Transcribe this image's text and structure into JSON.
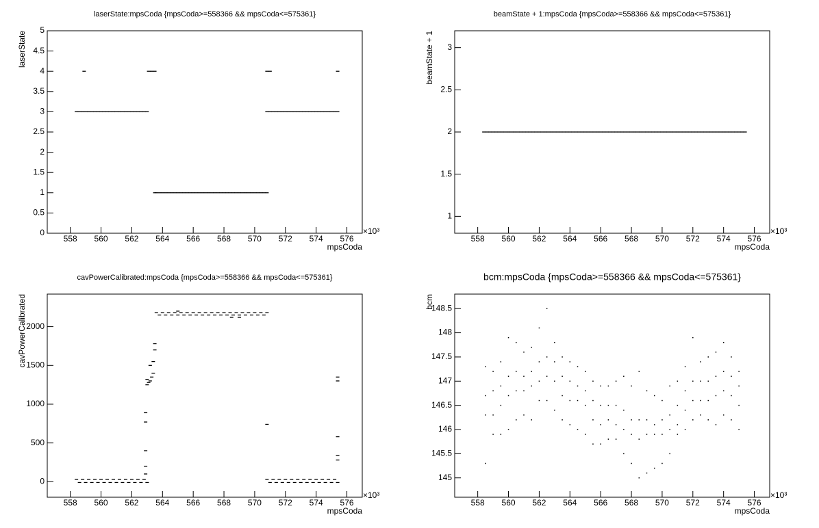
{
  "chart_data": [
    {
      "type": "scatter",
      "title": "laserState:mpsCoda {mpsCoda>=558366 && mpsCoda<=575361}",
      "x_label": "mpsCoda",
      "y_label": "laserState",
      "x_multiplier": "×10³",
      "color": "#000000",
      "xlim": [
        556.5,
        577.0
      ],
      "ylim": [
        0,
        5
      ],
      "xticks": [
        558,
        560,
        562,
        564,
        566,
        568,
        570,
        572,
        574,
        576
      ],
      "yticks": [
        0,
        0.5,
        1,
        1.5,
        2,
        2.5,
        3,
        3.5,
        4,
        4.5,
        5
      ],
      "x": [
        558.4,
        558.6,
        558.8,
        559.0,
        559.2,
        559.4,
        559.6,
        559.8,
        560.0,
        560.2,
        560.4,
        560.6,
        560.8,
        561.0,
        561.2,
        561.4,
        561.6,
        561.8,
        562.0,
        562.2,
        562.4,
        562.6,
        562.8,
        563.0,
        563.1,
        563.3,
        563.5,
        563.6,
        563.8,
        564.0,
        564.2,
        564.4,
        564.6,
        564.8,
        565.0,
        565.2,
        565.4,
        565.6,
        565.8,
        566.0,
        566.2,
        566.4,
        566.6,
        566.8,
        567.0,
        567.2,
        567.4,
        567.6,
        567.8,
        568.0,
        568.2,
        568.4,
        568.6,
        568.8,
        569.0,
        569.2,
        569.4,
        569.6,
        569.8,
        570.0,
        570.2,
        570.4,
        570.6,
        570.8,
        570.8,
        571.0,
        571.2,
        571.4,
        571.6,
        571.8,
        572.0,
        572.2,
        572.4,
        572.6,
        572.8,
        573.0,
        573.2,
        573.4,
        573.6,
        573.8,
        574.0,
        574.2,
        574.4,
        574.6,
        574.8,
        575.0,
        575.2,
        575.4,
        558.9,
        570.8,
        571.0,
        575.4,
        563.5
      ],
      "y": [
        3,
        3,
        3,
        3,
        3,
        3,
        3,
        3,
        3,
        3,
        3,
        3,
        3,
        3,
        3,
        3,
        3,
        3,
        3,
        3,
        3,
        3,
        3,
        3,
        4,
        4,
        4,
        1,
        1,
        1,
        1,
        1,
        1,
        1,
        1,
        1,
        1,
        1,
        1,
        1,
        1,
        1,
        1,
        1,
        1,
        1,
        1,
        1,
        1,
        1,
        1,
        1,
        1,
        1,
        1,
        1,
        1,
        1,
        1,
        1,
        1,
        1,
        1,
        1,
        3,
        3,
        3,
        3,
        3,
        3,
        3,
        3,
        3,
        3,
        3,
        3,
        3,
        3,
        3,
        3,
        3,
        3,
        3,
        3,
        3,
        3,
        3,
        3,
        4,
        4,
        4,
        4,
        1
      ]
    },
    {
      "type": "scatter",
      "title": "beamState + 1:mpsCoda {mpsCoda>=558366 && mpsCoda<=575361}",
      "x_label": "mpsCoda",
      "y_label": "beamState + 1",
      "x_multiplier": "×10³",
      "color": "#000000",
      "xlim": [
        556.5,
        577.0
      ],
      "ylim": [
        0.8,
        3.2
      ],
      "xticks": [
        558,
        560,
        562,
        564,
        566,
        568,
        570,
        572,
        574,
        576
      ],
      "yticks": [
        1,
        1.5,
        2,
        2.5,
        3
      ],
      "x": [
        558.4,
        558.6,
        558.8,
        559.0,
        559.2,
        559.4,
        559.6,
        559.8,
        560.0,
        560.2,
        560.4,
        560.6,
        560.8,
        561.0,
        561.2,
        561.4,
        561.6,
        561.8,
        562.0,
        562.2,
        562.4,
        562.6,
        562.8,
        563.0,
        563.2,
        563.4,
        563.6,
        563.8,
        564.0,
        564.2,
        564.4,
        564.6,
        564.8,
        565.0,
        565.2,
        565.4,
        565.6,
        565.8,
        566.0,
        566.2,
        566.4,
        566.6,
        566.8,
        567.0,
        567.2,
        567.4,
        567.6,
        567.8,
        568.0,
        568.2,
        568.4,
        568.6,
        568.8,
        569.0,
        569.2,
        569.4,
        569.6,
        569.8,
        570.0,
        570.2,
        570.4,
        570.6,
        570.8,
        571.0,
        571.2,
        571.4,
        571.6,
        571.8,
        572.0,
        572.2,
        572.4,
        572.6,
        572.8,
        573.0,
        573.2,
        573.4,
        573.6,
        573.8,
        574.0,
        574.2,
        574.4,
        574.6,
        574.8,
        575.0,
        575.2,
        575.4
      ],
      "y": [
        2,
        2,
        2,
        2,
        2,
        2,
        2,
        2,
        2,
        2,
        2,
        2,
        2,
        2,
        2,
        2,
        2,
        2,
        2,
        2,
        2,
        2,
        2,
        2,
        2,
        2,
        2,
        2,
        2,
        2,
        2,
        2,
        2,
        2,
        2,
        2,
        2,
        2,
        2,
        2,
        2,
        2,
        2,
        2,
        2,
        2,
        2,
        2,
        2,
        2,
        2,
        2,
        2,
        2,
        2,
        2,
        2,
        2,
        2,
        2,
        2,
        2,
        2,
        2,
        2,
        2,
        2,
        2,
        2,
        2,
        2,
        2,
        2,
        2,
        2,
        2,
        2,
        2,
        2,
        2,
        2,
        2,
        2,
        2,
        2,
        2
      ]
    },
    {
      "type": "scatter",
      "title": "cavPowerCalibrated:mpsCoda {mpsCoda>=558366 && mpsCoda<=575361}",
      "x_label": "mpsCoda",
      "y_label": "cavPowerCalibrated",
      "x_multiplier": "×10³",
      "color": "#000000",
      "xlim": [
        556.5,
        577.0
      ],
      "ylim": [
        -200,
        2420
      ],
      "xticks": [
        558,
        560,
        562,
        564,
        566,
        568,
        570,
        572,
        574,
        576
      ],
      "yticks": [
        0,
        500,
        1000,
        1500,
        2000
      ],
      "x": [
        558.4,
        558.8,
        559.2,
        559.6,
        560.0,
        560.4,
        560.8,
        561.2,
        561.6,
        562.0,
        562.4,
        562.8,
        558.6,
        559.0,
        559.4,
        559.8,
        560.2,
        560.6,
        561.0,
        561.4,
        561.8,
        562.2,
        562.6,
        563.0,
        563.6,
        564.0,
        564.4,
        564.8,
        565.2,
        565.6,
        566.0,
        566.4,
        566.8,
        567.2,
        567.6,
        568.0,
        568.4,
        568.8,
        569.2,
        569.6,
        570.0,
        570.4,
        570.8,
        563.8,
        564.2,
        564.6,
        565.0,
        565.4,
        565.8,
        566.2,
        566.6,
        567.0,
        567.4,
        567.8,
        568.2,
        568.6,
        569.0,
        569.4,
        569.8,
        570.2,
        570.6,
        570.8,
        571.2,
        571.6,
        572.0,
        572.4,
        572.8,
        573.2,
        573.6,
        574.0,
        574.4,
        574.8,
        575.2,
        571.0,
        571.4,
        571.8,
        572.2,
        572.6,
        573.0,
        573.4,
        573.8,
        574.2,
        574.6,
        575.0,
        575.4,
        563.0,
        563.1,
        563.2,
        563.3,
        563.4,
        563.4,
        563.5,
        563.5,
        563.2,
        563.0,
        562.9,
        562.9,
        562.9,
        562.9,
        562.9,
        570.8,
        575.4,
        575.4,
        575.4,
        575.4,
        575.4,
        568.5,
        569.0,
        565.0
      ],
      "y": [
        30,
        30,
        30,
        30,
        30,
        30,
        30,
        30,
        30,
        30,
        30,
        30,
        -10,
        -10,
        -10,
        -10,
        -10,
        -10,
        -10,
        -10,
        -10,
        -10,
        -10,
        -10,
        2180,
        2180,
        2180,
        2180,
        2180,
        2180,
        2180,
        2180,
        2180,
        2180,
        2180,
        2180,
        2180,
        2180,
        2180,
        2180,
        2180,
        2180,
        2180,
        2150,
        2150,
        2150,
        2150,
        2150,
        2150,
        2150,
        2150,
        2150,
        2150,
        2150,
        2150,
        2150,
        2150,
        2150,
        2150,
        2150,
        2150,
        30,
        30,
        30,
        30,
        30,
        30,
        30,
        30,
        30,
        30,
        30,
        30,
        -10,
        -10,
        -10,
        -10,
        -10,
        -10,
        -10,
        -10,
        -10,
        -10,
        -10,
        -10,
        1250,
        1280,
        1300,
        1350,
        1400,
        1550,
        1700,
        1780,
        1500,
        1320,
        100,
        200,
        400,
        890,
        770,
        740,
        1350,
        1300,
        580,
        340,
        280,
        2120,
        2120,
        2200
      ]
    },
    {
      "type": "scatter",
      "title": "bcm:mpsCoda {mpsCoda>=558366 && mpsCoda<=575361}",
      "x_label": "mpsCoda",
      "y_label": "bcm",
      "x_multiplier": "×10³",
      "color": "#000000",
      "xlim": [
        556.5,
        577.0
      ],
      "ylim": [
        144.6,
        148.8
      ],
      "xticks": [
        558,
        560,
        562,
        564,
        566,
        568,
        570,
        572,
        574,
        576
      ],
      "yticks": [
        145,
        145.5,
        146,
        146.5,
        147,
        147.5,
        148,
        148.5
      ],
      "x": [
        558.5,
        558.5,
        558.5,
        558.5,
        559.0,
        559.0,
        559.0,
        559.0,
        559.5,
        559.5,
        559.5,
        559.5,
        560.0,
        560.0,
        560.0,
        560.0,
        560.5,
        560.5,
        560.5,
        560.5,
        561.0,
        561.0,
        561.0,
        561.0,
        561.5,
        561.5,
        561.5,
        561.5,
        562.0,
        562.0,
        562.0,
        562.0,
        562.5,
        562.5,
        562.5,
        562.5,
        563.0,
        563.0,
        563.0,
        563.0,
        563.5,
        563.5,
        563.5,
        563.5,
        564.0,
        564.0,
        564.0,
        564.0,
        564.5,
        564.5,
        564.5,
        564.5,
        565.0,
        565.0,
        565.0,
        565.0,
        565.5,
        565.5,
        565.5,
        565.5,
        566.0,
        566.0,
        566.0,
        566.0,
        566.5,
        566.5,
        566.5,
        566.5,
        567.0,
        567.0,
        567.0,
        567.0,
        567.5,
        567.5,
        567.5,
        567.5,
        568.0,
        568.0,
        568.0,
        568.0,
        568.5,
        568.5,
        568.5,
        568.5,
        569.0,
        569.0,
        569.0,
        569.0,
        569.5,
        569.5,
        569.5,
        569.5,
        570.0,
        570.0,
        570.0,
        570.0,
        570.5,
        570.5,
        570.5,
        570.5,
        571.0,
        571.0,
        571.0,
        571.0,
        571.5,
        571.5,
        571.5,
        571.5,
        572.0,
        572.0,
        572.0,
        572.0,
        572.5,
        572.5,
        572.5,
        572.5,
        573.0,
        573.0,
        573.0,
        573.0,
        573.5,
        573.5,
        573.5,
        573.5,
        574.0,
        574.0,
        574.0,
        574.0,
        574.5,
        574.5,
        574.5,
        574.5,
        575.0,
        575.0,
        575.0,
        575.0
      ],
      "y": [
        145.3,
        146.3,
        146.7,
        147.3,
        145.9,
        146.3,
        146.8,
        147.2,
        145.9,
        146.5,
        146.9,
        147.4,
        146.0,
        146.7,
        147.1,
        147.9,
        146.2,
        146.8,
        147.2,
        147.8,
        146.3,
        146.8,
        147.1,
        147.6,
        146.2,
        146.9,
        147.2,
        147.7,
        146.6,
        147.0,
        147.4,
        148.1,
        146.6,
        147.1,
        147.5,
        148.5,
        146.4,
        147.0,
        147.4,
        147.8,
        146.2,
        146.7,
        147.1,
        147.5,
        146.1,
        146.6,
        147.0,
        147.4,
        146.0,
        146.6,
        146.9,
        147.3,
        145.9,
        146.5,
        146.8,
        147.2,
        145.7,
        146.2,
        146.6,
        147.0,
        145.7,
        146.1,
        146.5,
        146.9,
        145.8,
        146.2,
        146.5,
        146.9,
        145.8,
        146.1,
        146.5,
        147.0,
        145.5,
        146.0,
        146.4,
        147.1,
        145.3,
        145.9,
        146.2,
        146.9,
        145.0,
        145.8,
        146.2,
        147.2,
        145.1,
        145.9,
        146.2,
        146.8,
        145.2,
        145.9,
        146.1,
        146.7,
        145.3,
        145.9,
        146.2,
        146.6,
        145.5,
        146.0,
        146.3,
        146.9,
        145.9,
        146.1,
        146.5,
        147.0,
        146.0,
        146.4,
        146.8,
        147.3,
        146.2,
        146.6,
        147.0,
        147.9,
        146.3,
        146.6,
        147.0,
        147.4,
        146.2,
        146.6,
        147.0,
        147.5,
        146.1,
        146.7,
        147.1,
        147.6,
        146.3,
        146.8,
        147.2,
        147.8,
        146.2,
        146.7,
        147.1,
        147.5,
        146.0,
        146.5,
        146.9,
        147.2
      ]
    }
  ]
}
